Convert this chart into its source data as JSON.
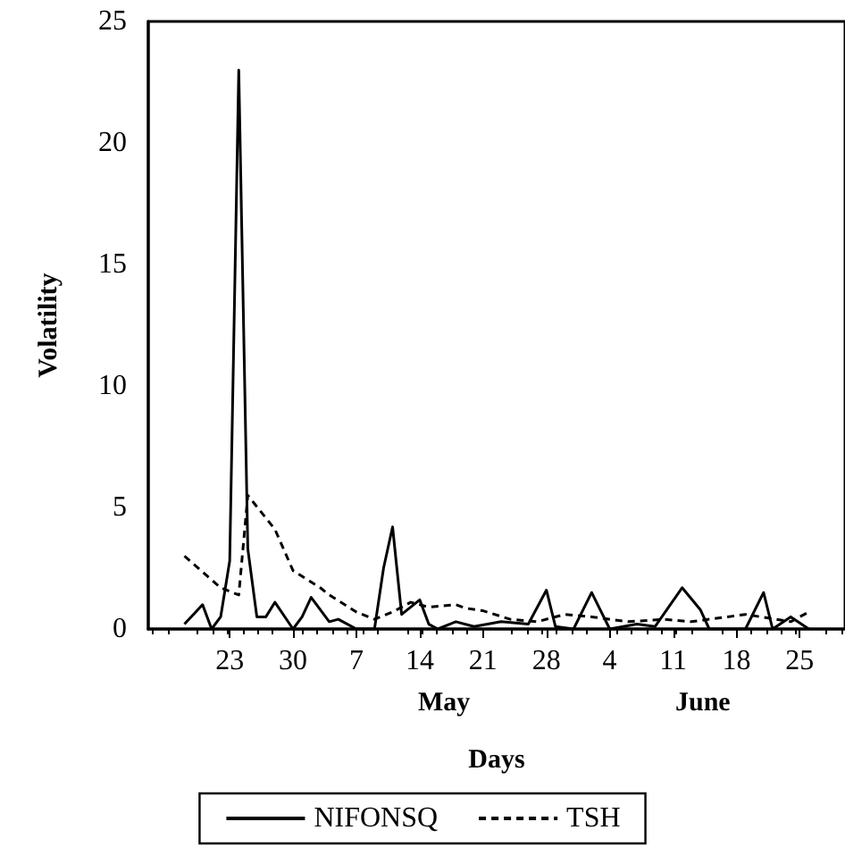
{
  "chart_data": {
    "type": "line",
    "xlabel": "Days",
    "ylabel": "Volatility",
    "annotations": [
      "May",
      "June"
    ],
    "xlim": [
      "--04-14",
      "--06-30"
    ],
    "xticks": [
      {
        "value": "--04-23",
        "label": "23"
      },
      {
        "value": "--04-30",
        "label": "30"
      },
      {
        "value": "--05-07",
        "label": "7"
      },
      {
        "value": "--05-14",
        "label": "14"
      },
      {
        "value": "--05-21",
        "label": "21"
      },
      {
        "value": "--05-28",
        "label": "28"
      },
      {
        "value": "--06-04",
        "label": "4"
      },
      {
        "value": "--06-11",
        "label": "11"
      },
      {
        "value": "--06-18",
        "label": "18"
      },
      {
        "value": "--06-25",
        "label": "25"
      }
    ],
    "ylim": [
      0,
      25
    ],
    "yticks": [
      0,
      5,
      10,
      15,
      20,
      25
    ],
    "grid": false,
    "legend": "bottom",
    "marker": "none",
    "series": [
      {
        "name": "NIFONSQ",
        "color": "#000000",
        "line_style": "solid",
        "x": [
          "--04-18",
          "--04-20",
          "--04-21",
          "--04-22",
          "--04-23",
          "--04-24",
          "--04-25",
          "--04-26",
          "--04-27",
          "--04-28",
          "--04-30",
          "--05-01",
          "--05-02",
          "--05-04",
          "--05-05",
          "--05-07",
          "--05-09",
          "--05-10",
          "--05-11",
          "--05-12",
          "--05-14",
          "--05-15",
          "--05-16",
          "--05-18",
          "--05-20",
          "--05-23",
          "--05-26",
          "--05-28",
          "--05-29",
          "--05-31",
          "--06-02",
          "--06-04",
          "--06-07",
          "--06-09",
          "--06-12",
          "--06-14",
          "--06-15",
          "--06-19",
          "--06-21",
          "--06-22",
          "--06-24",
          "--06-26"
        ],
        "values": [
          0.2,
          1,
          0,
          0.5,
          2.8,
          23,
          3.3,
          0.5,
          0.5,
          1.1,
          0,
          0.5,
          1.3,
          0.3,
          0.4,
          0,
          0,
          2.5,
          4.2,
          0.6,
          1.2,
          0.2,
          0,
          0.3,
          0.1,
          0.3,
          0.2,
          1.6,
          0.1,
          0,
          1.5,
          0,
          0.2,
          0.1,
          1.7,
          0.8,
          0,
          0,
          1.5,
          0,
          0.5,
          0
        ]
      },
      {
        "name": "TSH",
        "color": "#000000",
        "line_style": "dashed",
        "x": [
          "--04-18",
          "--04-22",
          "--04-24",
          "--04-25",
          "--04-28",
          "--04-30",
          "--05-03",
          "--05-04",
          "--05-07",
          "--05-09",
          "--05-11",
          "--05-13",
          "--05-15",
          "--05-18",
          "--05-19",
          "--05-21",
          "--05-24",
          "--05-27",
          "--05-30",
          "--06-02",
          "--06-06",
          "--06-10",
          "--06-13",
          "--06-17",
          "--06-19",
          "--06-24",
          "--06-26"
        ],
        "values": [
          3,
          1.7,
          1.4,
          5.5,
          4.1,
          2.4,
          1.7,
          1.4,
          0.7,
          0.4,
          0.7,
          1.1,
          0.9,
          1,
          0.86,
          0.75,
          0.4,
          0.3,
          0.6,
          0.5,
          0.3,
          0.4,
          0.3,
          0.5,
          0.6,
          0.3,
          0.7
        ]
      }
    ]
  }
}
